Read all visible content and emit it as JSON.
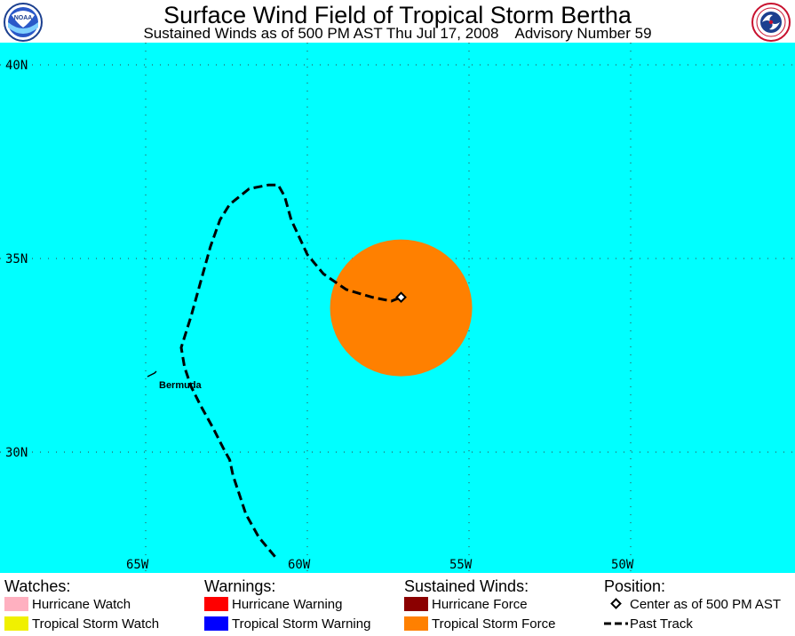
{
  "header": {
    "title": "Surface Wind Field of Tropical Storm Bertha",
    "subtitle_left": "Sustained Winds as of 500 PM AST Thu Jul 17, 2008",
    "subtitle_right": "Advisory Number 59",
    "left_logo": {
      "icon": "noaa-logo-icon",
      "text": "NOAA"
    },
    "right_logo": {
      "icon": "nws-logo-icon"
    }
  },
  "map": {
    "ocean_color": "#00ffff",
    "grid_color": "#3a3a3a",
    "lat_labels": [
      {
        "lat": 40,
        "label": "40N"
      },
      {
        "lat": 35,
        "label": "35N"
      },
      {
        "lat": 30,
        "label": "30N"
      }
    ],
    "lon_labels": [
      {
        "lon": -65,
        "label": "65W"
      },
      {
        "lon": -60,
        "label": "60W"
      },
      {
        "lon": -55,
        "label": "55W"
      },
      {
        "lon": -50,
        "label": "50W"
      }
    ],
    "place_label": "Bermuda",
    "storm": {
      "center": {
        "lat": 34.0,
        "lon": -57.1
      },
      "tropical_storm_force_color": "#ff8000"
    },
    "past_track": [
      [
        -61.0,
        27.3
      ],
      [
        -61.5,
        27.8
      ],
      [
        -61.9,
        28.4
      ],
      [
        -62.1,
        28.9
      ],
      [
        -62.3,
        29.4
      ],
      [
        -62.4,
        29.8
      ],
      [
        -62.6,
        30.1
      ],
      [
        -62.9,
        30.6
      ],
      [
        -63.3,
        31.2
      ],
      [
        -63.6,
        31.7
      ],
      [
        -63.8,
        32.2
      ],
      [
        -63.9,
        32.7
      ],
      [
        -63.6,
        33.5
      ],
      [
        -63.3,
        34.4
      ],
      [
        -63.0,
        35.3
      ],
      [
        -62.7,
        36.0
      ],
      [
        -62.4,
        36.4
      ],
      [
        -61.8,
        36.8
      ],
      [
        -61.2,
        36.9
      ],
      [
        -60.9,
        36.9
      ],
      [
        -60.7,
        36.6
      ],
      [
        -60.5,
        36.0
      ],
      [
        -60.0,
        35.1
      ],
      [
        -59.5,
        34.6
      ],
      [
        -58.8,
        34.2
      ],
      [
        -58.0,
        34.0
      ],
      [
        -57.4,
        33.9
      ],
      [
        -57.1,
        34.0
      ]
    ]
  },
  "legend": {
    "watches": {
      "heading": "Watches:",
      "items": [
        {
          "label": "Hurricane Watch",
          "color": "#ffb0c0"
        },
        {
          "label": "Tropical Storm Watch",
          "color": "#f0f000"
        }
      ]
    },
    "warnings": {
      "heading": "Warnings:",
      "items": [
        {
          "label": "Hurricane Warning",
          "color": "#ff0000"
        },
        {
          "label": "Tropical Storm Warning",
          "color": "#0000ff"
        }
      ]
    },
    "sustained_winds": {
      "heading": "Sustained Winds:",
      "items": [
        {
          "label": "Hurricane Force",
          "color": "#8b0000"
        },
        {
          "label": "Tropical Storm Force",
          "color": "#ff8000"
        }
      ]
    },
    "position": {
      "heading": "Position:",
      "items": [
        {
          "label": "Center as of 500 PM AST",
          "icon": "diamond-icon"
        },
        {
          "label": "Past Track",
          "icon": "dashed-line-icon"
        }
      ]
    }
  }
}
